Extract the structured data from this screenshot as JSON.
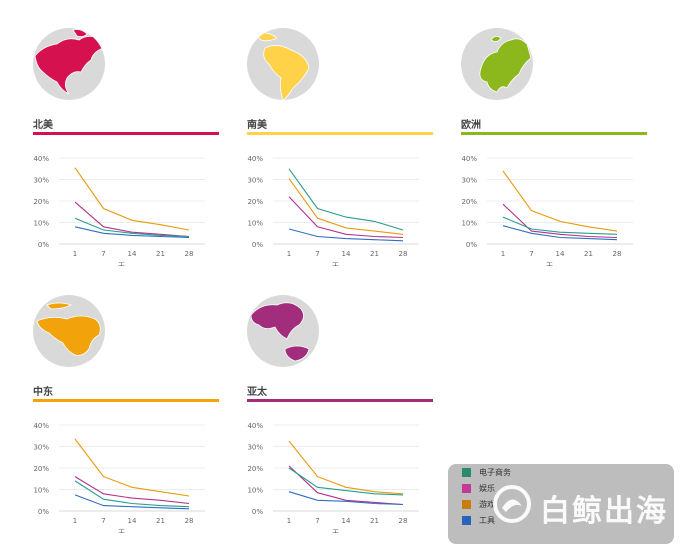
{
  "colors": {
    "ecommerce": "#2a9d8f",
    "entertainment": "#b5338a",
    "gaming": "#e89a0c",
    "tools": "#2f6fc2",
    "grid": "#e6e6e6",
    "axis_text": "#666666"
  },
  "legend": {
    "items": [
      {
        "label": "电子商务",
        "color": "#2a8a6e"
      },
      {
        "label": "娱乐",
        "color": "#c23a93"
      },
      {
        "label": "游戏",
        "color": "#c97d0c"
      },
      {
        "label": "工具",
        "color": "#2a63b8"
      }
    ],
    "watermark": "白鲸出海"
  },
  "regions": [
    {
      "key": "na",
      "title": "北美",
      "accent": "#d6114f",
      "land": "#d6114f",
      "globe_icon": "north-america-globe-icon"
    },
    {
      "key": "sa",
      "title": "南美",
      "accent": "#ffd24a",
      "land": "#ffd24a",
      "globe_icon": "south-america-globe-icon"
    },
    {
      "key": "eu",
      "title": "欧洲",
      "accent": "#8cb81e",
      "land": "#8cb81e",
      "globe_icon": "europe-globe-icon"
    },
    {
      "key": "me",
      "title": "中东",
      "accent": "#f2a20a",
      "land": "#f2a20a",
      "globe_icon": "middle-east-globe-icon"
    },
    {
      "key": "ap",
      "title": "亚太",
      "accent": "#a22d7c",
      "land": "#a22d7c",
      "globe_icon": "asia-pacific-globe-icon"
    }
  ],
  "chart_data": [
    {
      "type": "line",
      "region": "北美",
      "xlabel": "天",
      "ylabel": "",
      "x": [
        1,
        7,
        14,
        21,
        28
      ],
      "y_ticks": [
        "0%",
        "10%",
        "20%",
        "30%",
        "40%"
      ],
      "ylim": [
        0,
        40
      ],
      "grid": true,
      "series": [
        {
          "name": "游戏",
          "color": "#e89a0c",
          "values": [
            35.5,
            16.5,
            11,
            9,
            6.5
          ]
        },
        {
          "name": "娱乐",
          "color": "#b5338a",
          "values": [
            19.5,
            8,
            5.5,
            4.5,
            3.5
          ]
        },
        {
          "name": "电子商务",
          "color": "#2a9d8f",
          "values": [
            12,
            6.5,
            5,
            4,
            3.5
          ]
        },
        {
          "name": "工具",
          "color": "#2f6fc2",
          "values": [
            8,
            5,
            4,
            3.5,
            3
          ]
        }
      ]
    },
    {
      "type": "line",
      "region": "南美",
      "xlabel": "天",
      "ylabel": "",
      "x": [
        1,
        7,
        14,
        21,
        28
      ],
      "y_ticks": [
        "0%",
        "10%",
        "20%",
        "30%",
        "40%"
      ],
      "ylim": [
        0,
        40
      ],
      "grid": true,
      "series": [
        {
          "name": "电子商务",
          "color": "#2a9d8f",
          "values": [
            35,
            16.5,
            12.5,
            10.5,
            6.5
          ]
        },
        {
          "name": "游戏",
          "color": "#e89a0c",
          "values": [
            30.5,
            12,
            7.5,
            6,
            4.5
          ]
        },
        {
          "name": "娱乐",
          "color": "#b5338a",
          "values": [
            22,
            8,
            4.5,
            3.5,
            3
          ]
        },
        {
          "name": "工具",
          "color": "#2f6fc2",
          "values": [
            7,
            3.5,
            2.5,
            2,
            1.5
          ]
        }
      ]
    },
    {
      "type": "line",
      "region": "欧洲",
      "xlabel": "天",
      "ylabel": "",
      "x": [
        1,
        7,
        14,
        21,
        28
      ],
      "y_ticks": [
        "0%",
        "10%",
        "20%",
        "30%",
        "40%"
      ],
      "ylim": [
        0,
        40
      ],
      "grid": true,
      "series": [
        {
          "name": "游戏",
          "color": "#e89a0c",
          "values": [
            34,
            15.5,
            10.5,
            8,
            6
          ]
        },
        {
          "name": "娱乐",
          "color": "#b5338a",
          "values": [
            18.5,
            6,
            4.5,
            3.5,
            3
          ]
        },
        {
          "name": "电子商务",
          "color": "#2a9d8f",
          "values": [
            12.5,
            7,
            5.5,
            5,
            4.5
          ]
        },
        {
          "name": "工具",
          "color": "#2f6fc2",
          "values": [
            8.5,
            5,
            3,
            2.5,
            2
          ]
        }
      ]
    },
    {
      "type": "line",
      "region": "中东",
      "xlabel": "天",
      "ylabel": "",
      "x": [
        1,
        7,
        14,
        21,
        28
      ],
      "y_ticks": [
        "0%",
        "10%",
        "20%",
        "30%",
        "40%"
      ],
      "ylim": [
        0,
        40
      ],
      "grid": true,
      "series": [
        {
          "name": "游戏",
          "color": "#e89a0c",
          "values": [
            33.5,
            16,
            11,
            9,
            7
          ]
        },
        {
          "name": "娱乐",
          "color": "#b5338a",
          "values": [
            16,
            8,
            6,
            5,
            3.5
          ]
        },
        {
          "name": "电子商务",
          "color": "#2a9d8f",
          "values": [
            14,
            5.5,
            3.5,
            2.5,
            2
          ]
        },
        {
          "name": "工具",
          "color": "#2f6fc2",
          "values": [
            7.5,
            2.5,
            2,
            1.5,
            1
          ]
        }
      ]
    },
    {
      "type": "line",
      "region": "亚太",
      "xlabel": "天",
      "ylabel": "",
      "x": [
        1,
        7,
        14,
        21,
        28
      ],
      "y_ticks": [
        "0%",
        "10%",
        "20%",
        "30%",
        "40%"
      ],
      "ylim": [
        0,
        40
      ],
      "grid": true,
      "series": [
        {
          "name": "游戏",
          "color": "#e89a0c",
          "values": [
            32.5,
            16,
            11,
            9,
            8
          ]
        },
        {
          "name": "娱乐",
          "color": "#b5338a",
          "values": [
            21,
            8.5,
            5,
            4,
            3
          ]
        },
        {
          "name": "电子商务",
          "color": "#2a9d8f",
          "values": [
            20,
            11,
            9.5,
            8,
            7.5
          ]
        },
        {
          "name": "工具",
          "color": "#2f6fc2",
          "values": [
            9,
            5,
            4.5,
            3.5,
            3
          ]
        }
      ]
    }
  ]
}
